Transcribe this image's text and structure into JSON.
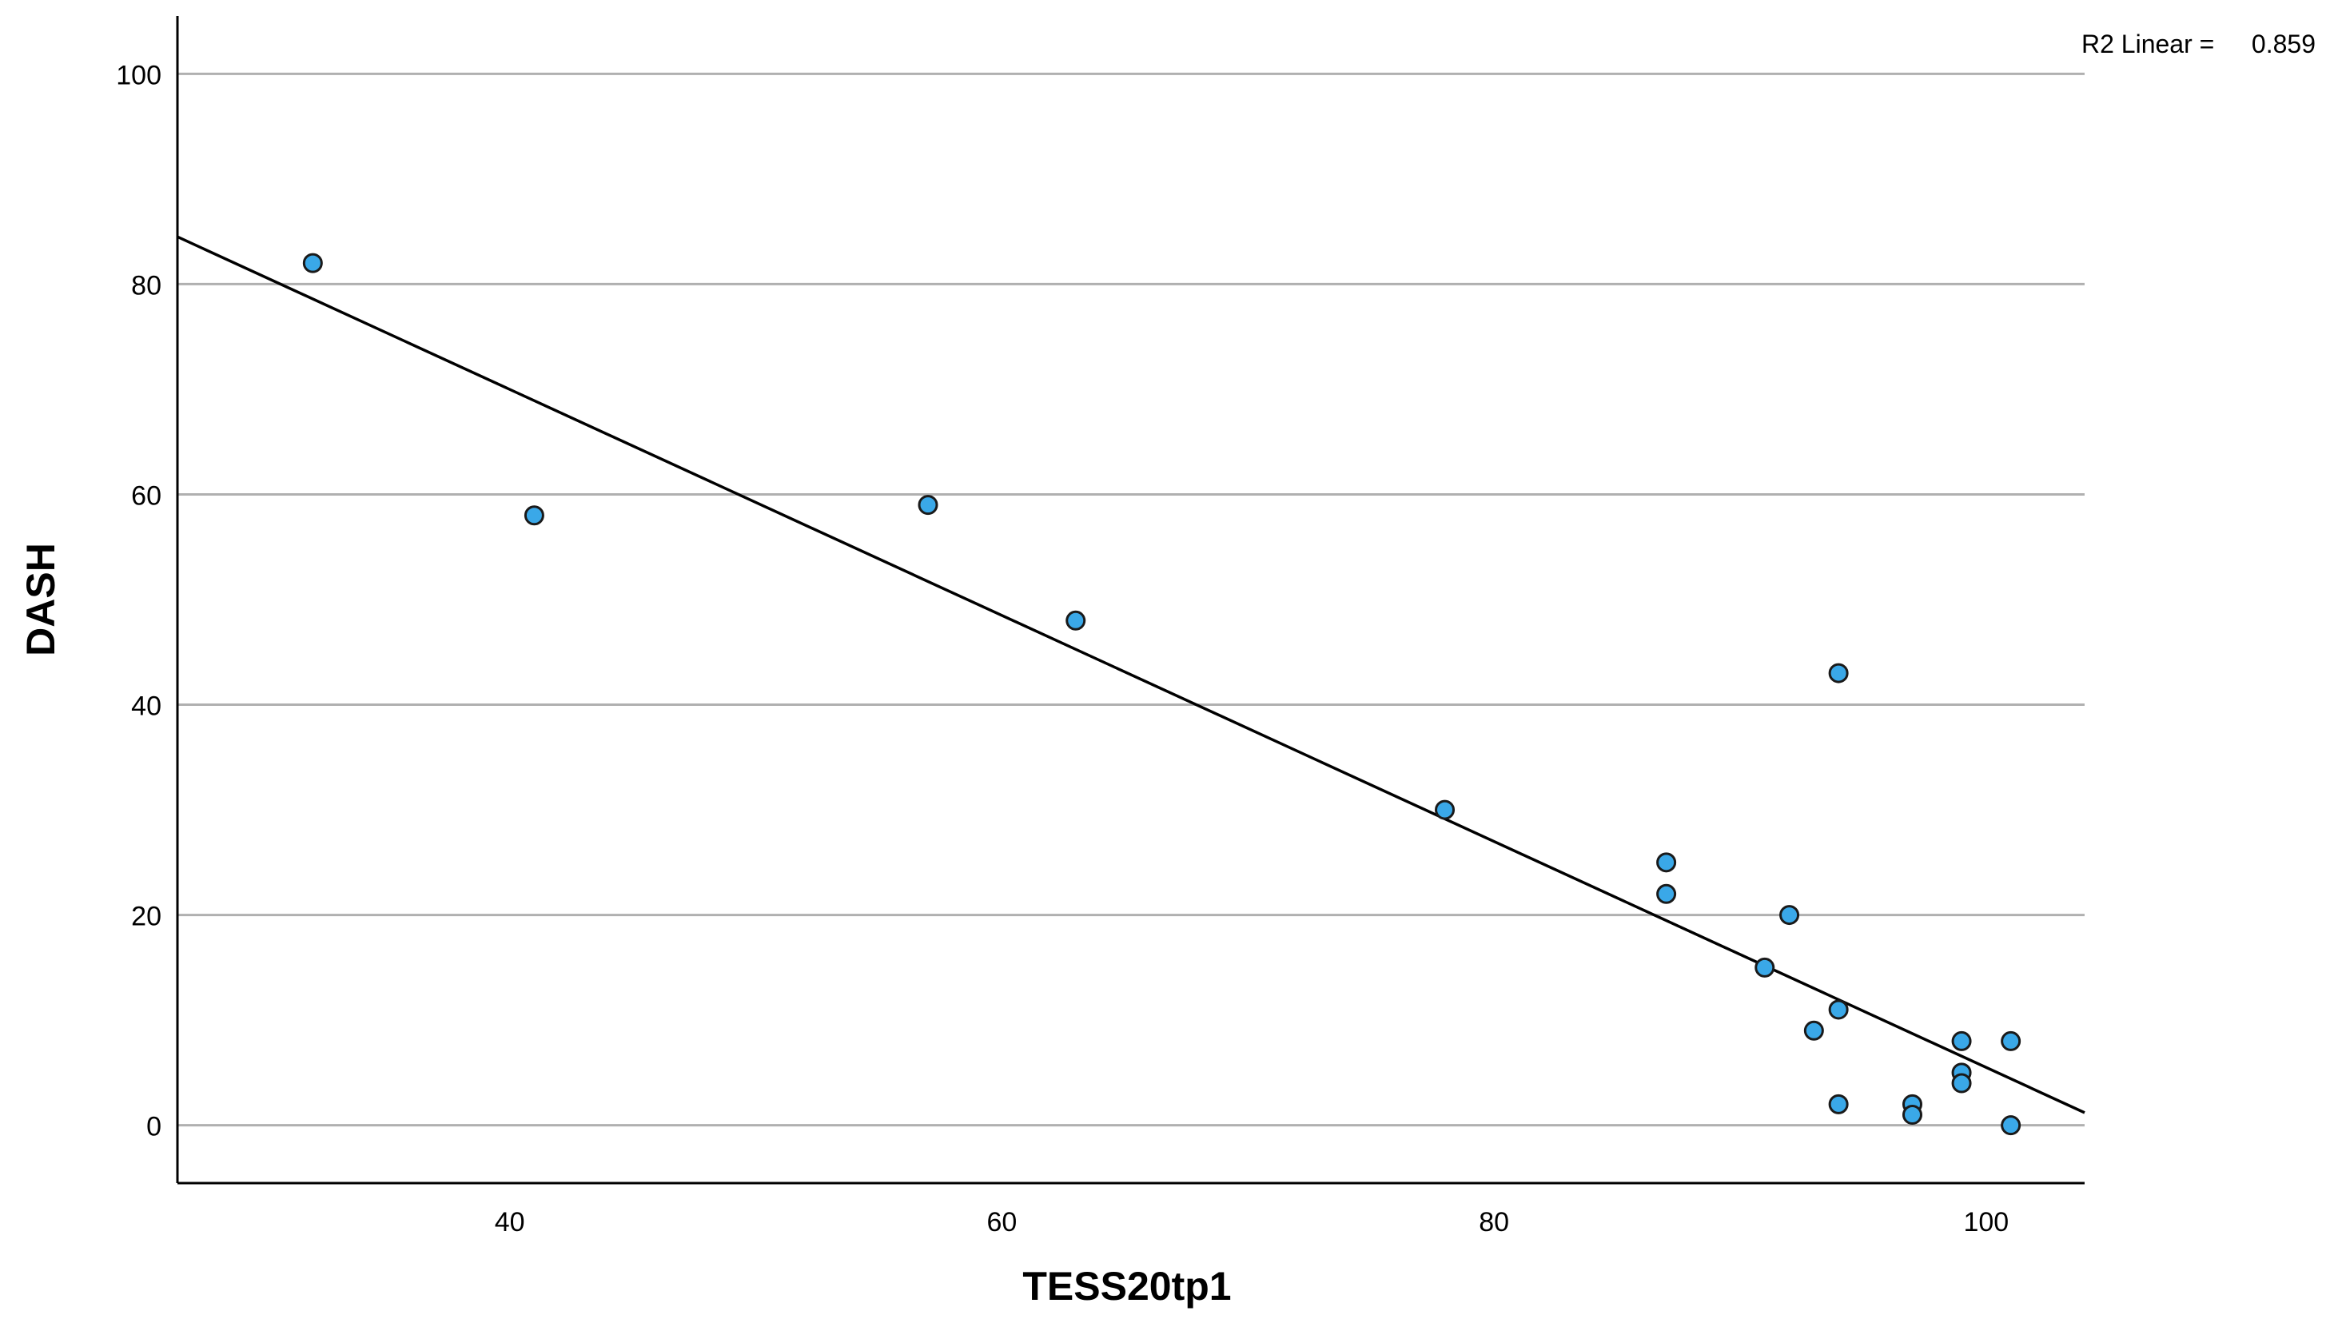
{
  "chart_data": {
    "type": "scatter",
    "xlabel": "TESS20tp1",
    "ylabel": "DASH",
    "xlim": [
      26.5,
      104
    ],
    "ylim": [
      -5.5,
      105.5
    ],
    "xticks": [
      40,
      60,
      80,
      100
    ],
    "yticks": [
      0,
      20,
      40,
      60,
      80,
      100
    ],
    "grid": "horizontal",
    "annotation": {
      "label": "R2 Linear = ",
      "value": "0.859"
    },
    "fit_line": {
      "type": "linear",
      "points": [
        [
          26.5,
          84.5
        ],
        [
          104,
          1.2
        ]
      ]
    },
    "points": [
      {
        "x": 32,
        "y": 82
      },
      {
        "x": 41,
        "y": 58
      },
      {
        "x": 57,
        "y": 59
      },
      {
        "x": 63,
        "y": 48
      },
      {
        "x": 78,
        "y": 30
      },
      {
        "x": 87,
        "y": 25
      },
      {
        "x": 87,
        "y": 22
      },
      {
        "x": 94,
        "y": 43
      },
      {
        "x": 92,
        "y": 20
      },
      {
        "x": 91,
        "y": 15
      },
      {
        "x": 94,
        "y": 11
      },
      {
        "x": 93,
        "y": 9
      },
      {
        "x": 99,
        "y": 8
      },
      {
        "x": 101,
        "y": 8
      },
      {
        "x": 99,
        "y": 5
      },
      {
        "x": 99,
        "y": 4
      },
      {
        "x": 94,
        "y": 2
      },
      {
        "x": 97,
        "y": 2
      },
      {
        "x": 97,
        "y": 1
      },
      {
        "x": 101,
        "y": 0
      }
    ],
    "colors": {
      "point_fill": "#3aa8e8",
      "point_stroke": "#1a1a1a",
      "grid": "#b0b0b0",
      "axis": "#000000",
      "fit_line": "#000000"
    }
  }
}
